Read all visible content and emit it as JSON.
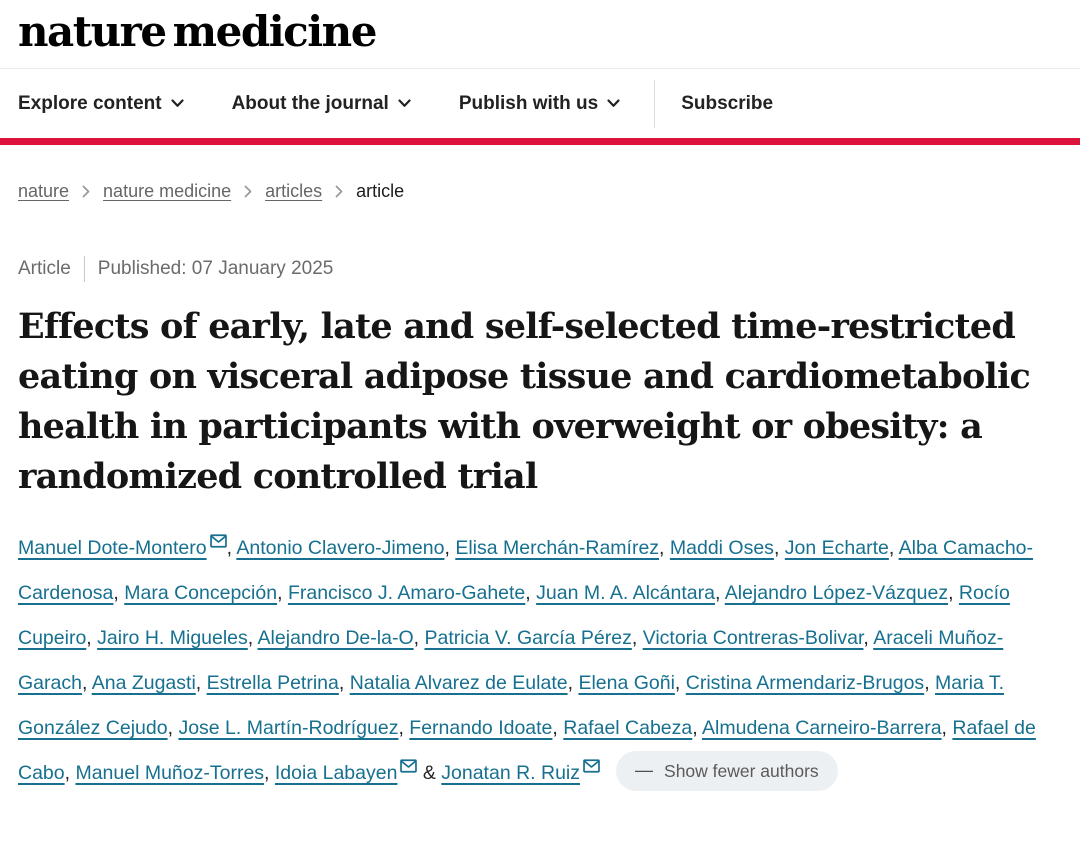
{
  "brand": {
    "logo_text": "nature medicine"
  },
  "nav": {
    "menus": [
      "Explore content",
      "About the journal",
      "Publish with us"
    ],
    "subscribe_label": "Subscribe"
  },
  "breadcrumb": {
    "items": [
      {
        "label": "nature",
        "current": false
      },
      {
        "label": "nature medicine",
        "current": false
      },
      {
        "label": "articles",
        "current": false
      },
      {
        "label": "article",
        "current": true
      }
    ]
  },
  "article": {
    "type_label": "Article",
    "published": "Published: 07 January 2025",
    "title": "Effects of early, late and self-selected time-restricted eating on visceral adipose tissue and cardiometabolic health in participants with overweight or obesity: a randomized controlled trial",
    "title_lines": [
      "Effects of early, late and self-selected time-restricted",
      "eating on visceral adipose tissue and cardiometabolic",
      "health in participants with overweight or obesity: a",
      "randomized controlled trial"
    ]
  },
  "authors": {
    "list": [
      {
        "name": "Manuel Dote-Montero",
        "email": true
      },
      {
        "name": "Antonio Clavero-Jimeno",
        "email": false
      },
      {
        "name": "Elisa Merchán-Ramírez",
        "email": false
      },
      {
        "name": "Maddi Oses",
        "email": false
      },
      {
        "name": "Jon Echarte",
        "email": false
      },
      {
        "name": "Alba Camacho-Cardenosa",
        "email": false
      },
      {
        "name": "Mara Concepción",
        "email": false
      },
      {
        "name": "Francisco J. Amaro-Gahete",
        "email": false
      },
      {
        "name": "Juan M. A. Alcántara",
        "email": false
      },
      {
        "name": "Alejandro López-Vázquez",
        "email": false
      },
      {
        "name": "Rocío Cupeiro",
        "email": false
      },
      {
        "name": "Jairo H. Migueles",
        "email": false
      },
      {
        "name": "Alejandro De-la-O",
        "email": false
      },
      {
        "name": "Patricia V. García Pérez",
        "email": false
      },
      {
        "name": "Victoria Contreras-Bolivar",
        "email": false
      },
      {
        "name": "Araceli Muñoz-Garach",
        "email": false
      },
      {
        "name": "Ana Zugasti",
        "email": false
      },
      {
        "name": "Estrella Petrina",
        "email": false
      },
      {
        "name": "Natalia Alvarez de Eulate",
        "email": false
      },
      {
        "name": "Elena Goñi",
        "email": false
      },
      {
        "name": "Cristina Armendariz-Brugos",
        "email": false
      },
      {
        "name": "Maria T. González Cejudo",
        "email": false
      },
      {
        "name": "Jose L. Martín-Rodríguez",
        "email": false
      },
      {
        "name": "Fernando Idoate",
        "email": false
      },
      {
        "name": "Rafael Cabeza",
        "email": false
      },
      {
        "name": "Almudena Carneiro-Barrera",
        "email": false
      },
      {
        "name": "Rafael de Cabo",
        "email": false
      },
      {
        "name": "Manuel Muñoz-Torres",
        "email": false
      },
      {
        "name": "Idoia Labayen",
        "email": true
      },
      {
        "name": "Jonatan R. Ruiz",
        "email": true
      }
    ],
    "comma": ",",
    "ampersand": "&",
    "show_fewer_dash": "—",
    "show_fewer_label": "Show fewer authors"
  },
  "colors": {
    "accent_red": "#dc143c",
    "link_teal": "#17708f",
    "pill_bg": "#edf0f3"
  }
}
